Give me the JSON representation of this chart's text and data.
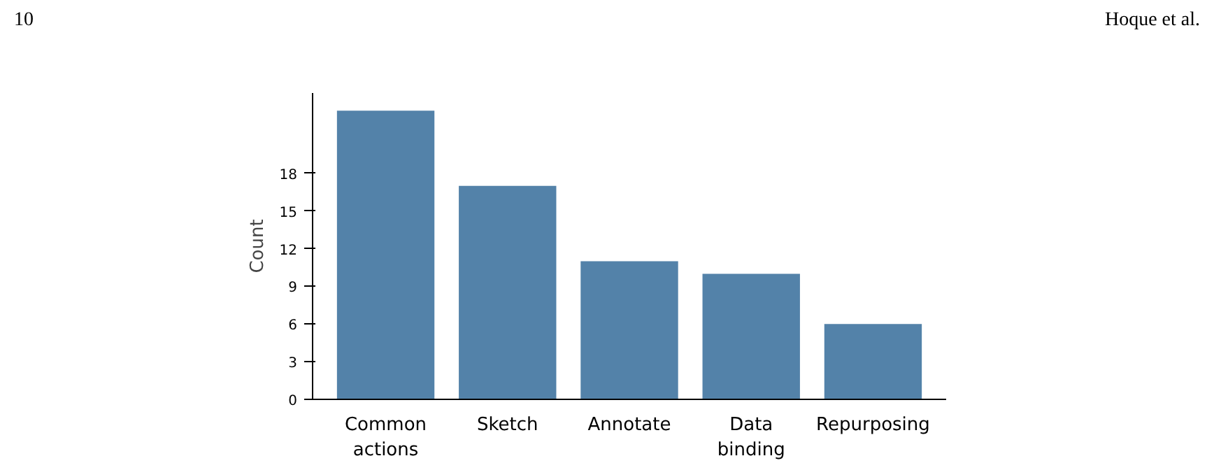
{
  "chart_data": {
    "type": "bar",
    "ylabel": "Count",
    "categories": [
      "Common actions",
      "Sketch",
      "Annotate",
      "Data binding",
      "Repurposing"
    ],
    "values": [
      23,
      17,
      11,
      10,
      6
    ],
    "color": "#5382a9",
    "ylim": [
      0,
      24.4
    ],
    "yticks": [
      0,
      3,
      6,
      9,
      12,
      15,
      18
    ],
    "grid": false,
    "annotations": [
      "10",
      "Hoque et al."
    ]
  }
}
